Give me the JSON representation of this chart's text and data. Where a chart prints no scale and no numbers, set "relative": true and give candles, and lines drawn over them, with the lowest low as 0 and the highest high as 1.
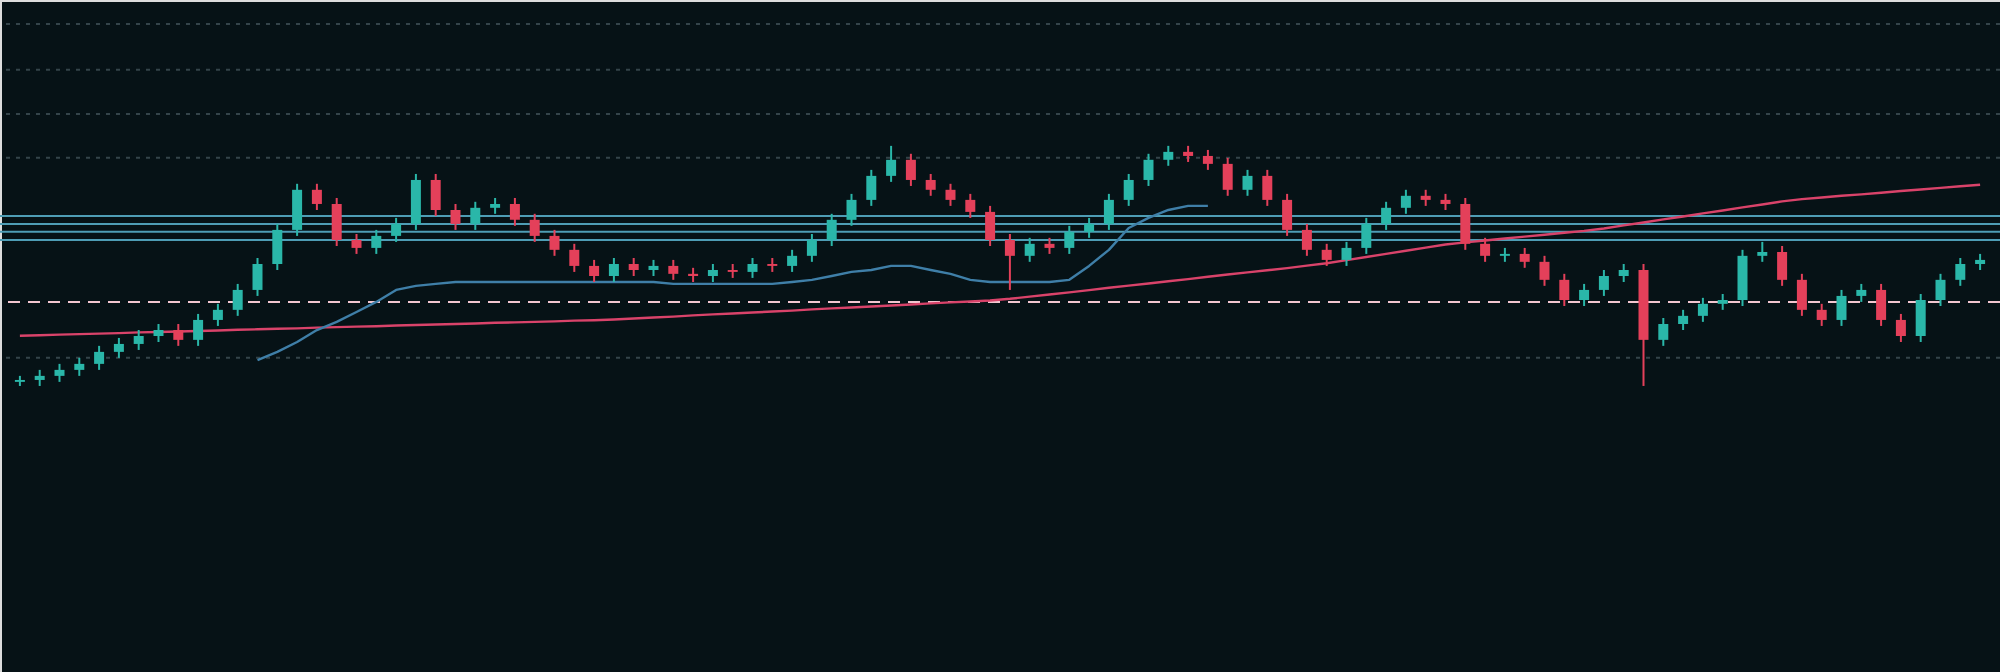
{
  "chart_data": {
    "type": "candlestick",
    "relative": true,
    "categories": [
      null,
      null,
      null,
      null,
      null,
      null,
      null,
      null,
      null,
      null,
      null,
      null,
      null,
      null,
      null,
      null,
      null,
      null,
      null,
      null,
      null,
      null,
      null,
      null,
      null,
      null,
      null,
      null,
      null,
      null,
      null,
      null,
      null,
      null,
      null,
      null,
      null,
      null,
      null,
      null,
      null,
      null,
      null,
      null,
      null,
      null,
      null,
      null,
      null,
      null,
      null,
      null,
      null,
      null,
      null,
      null,
      null,
      null,
      null,
      null,
      null,
      null,
      null,
      null,
      null,
      null,
      null,
      null,
      null,
      null,
      null,
      null,
      null,
      null,
      null,
      null,
      null,
      null,
      null,
      null,
      null,
      null,
      null,
      null,
      null,
      null,
      null,
      null,
      null,
      null,
      null,
      null,
      null,
      null,
      null,
      null,
      null,
      null,
      null,
      null
    ],
    "ohlc": [
      [
        0.017,
        0.042,
        0,
        0.025
      ],
      [
        0.025,
        0.067,
        0,
        0.042
      ],
      [
        0.042,
        0.092,
        0.017,
        0.067
      ],
      [
        0.067,
        0.117,
        0.042,
        0.092
      ],
      [
        0.092,
        0.167,
        0.067,
        0.142
      ],
      [
        0.142,
        0.2,
        0.117,
        0.175
      ],
      [
        0.175,
        0.233,
        0.15,
        0.208
      ],
      [
        0.208,
        0.258,
        0.183,
        0.233
      ],
      [
        0.233,
        0.258,
        0.167,
        0.192
      ],
      [
        0.192,
        0.3,
        0.167,
        0.275
      ],
      [
        0.275,
        0.342,
        0.25,
        0.317
      ],
      [
        0.317,
        0.425,
        0.292,
        0.4
      ],
      [
        0.4,
        0.533,
        0.375,
        0.508
      ],
      [
        0.508,
        0.675,
        0.483,
        0.65
      ],
      [
        0.65,
        0.842,
        0.625,
        0.817
      ],
      [
        0.817,
        0.842,
        0.733,
        0.758
      ],
      [
        0.758,
        0.783,
        0.583,
        0.608
      ],
      [
        0.608,
        0.633,
        0.55,
        0.575
      ],
      [
        0.575,
        0.65,
        0.55,
        0.625
      ],
      [
        0.625,
        0.7,
        0.6,
        0.675
      ],
      [
        0.675,
        0.883,
        0.65,
        0.858
      ],
      [
        0.858,
        0.883,
        0.708,
        0.733
      ],
      [
        0.733,
        0.758,
        0.65,
        0.675
      ],
      [
        0.675,
        0.767,
        0.65,
        0.742
      ],
      [
        0.742,
        0.783,
        0.717,
        0.758
      ],
      [
        0.758,
        0.783,
        0.667,
        0.692
      ],
      [
        0.692,
        0.717,
        0.6,
        0.625
      ],
      [
        0.625,
        0.65,
        0.542,
        0.567
      ],
      [
        0.567,
        0.592,
        0.475,
        0.5
      ],
      [
        0.5,
        0.525,
        0.433,
        0.458
      ],
      [
        0.458,
        0.533,
        0.433,
        0.508
      ],
      [
        0.508,
        0.533,
        0.458,
        0.483
      ],
      [
        0.483,
        0.525,
        0.458,
        0.5
      ],
      [
        0.5,
        0.525,
        0.442,
        0.467
      ],
      [
        0.467,
        0.492,
        0.433,
        0.458
      ],
      [
        0.458,
        0.508,
        0.433,
        0.483
      ],
      [
        0.483,
        0.508,
        0.45,
        0.475
      ],
      [
        0.475,
        0.533,
        0.45,
        0.508
      ],
      [
        0.508,
        0.533,
        0.475,
        0.5
      ],
      [
        0.5,
        0.567,
        0.475,
        0.542
      ],
      [
        0.542,
        0.633,
        0.517,
        0.608
      ],
      [
        0.608,
        0.717,
        0.583,
        0.692
      ],
      [
        0.692,
        0.8,
        0.667,
        0.775
      ],
      [
        0.775,
        0.9,
        0.75,
        0.875
      ],
      [
        0.875,
        1,
        0.85,
        0.942
      ],
      [
        0.942,
        0.967,
        0.833,
        0.858
      ],
      [
        0.858,
        0.883,
        0.792,
        0.817
      ],
      [
        0.817,
        0.842,
        0.75,
        0.775
      ],
      [
        0.775,
        0.8,
        0.7,
        0.725
      ],
      [
        0.725,
        0.75,
        0.583,
        0.608
      ],
      [
        0.608,
        0.633,
        0.4,
        0.542
      ],
      [
        0.542,
        0.617,
        0.517,
        0.592
      ],
      [
        0.592,
        0.617,
        0.55,
        0.575
      ],
      [
        0.575,
        0.667,
        0.55,
        0.642
      ],
      [
        0.642,
        0.7,
        0.617,
        0.675
      ],
      [
        0.675,
        0.8,
        0.65,
        0.775
      ],
      [
        0.775,
        0.883,
        0.75,
        0.858
      ],
      [
        0.858,
        0.967,
        0.833,
        0.942
      ],
      [
        0.942,
        1,
        0.917,
        0.975
      ],
      [
        0.975,
        1,
        0.933,
        0.958
      ],
      [
        0.958,
        0.983,
        0.9,
        0.925
      ],
      [
        0.925,
        0.95,
        0.792,
        0.817
      ],
      [
        0.817,
        0.9,
        0.792,
        0.875
      ],
      [
        0.875,
        0.9,
        0.75,
        0.775
      ],
      [
        0.775,
        0.8,
        0.625,
        0.65
      ],
      [
        0.65,
        0.675,
        0.542,
        0.567
      ],
      [
        0.567,
        0.592,
        0.5,
        0.525
      ],
      [
        0.525,
        0.6,
        0.5,
        0.575
      ],
      [
        0.575,
        0.7,
        0.55,
        0.675
      ],
      [
        0.675,
        0.767,
        0.65,
        0.742
      ],
      [
        0.742,
        0.817,
        0.717,
        0.792
      ],
      [
        0.792,
        0.817,
        0.75,
        0.775
      ],
      [
        0.775,
        0.8,
        0.733,
        0.758
      ],
      [
        0.758,
        0.783,
        0.567,
        0.592
      ],
      [
        0.592,
        0.617,
        0.517,
        0.542
      ],
      [
        0.542,
        0.575,
        0.517,
        0.55
      ],
      [
        0.55,
        0.575,
        0.492,
        0.517
      ],
      [
        0.517,
        0.542,
        0.417,
        0.442
      ],
      [
        0.442,
        0.467,
        0.333,
        0.358
      ],
      [
        0.358,
        0.425,
        0.333,
        0.4
      ],
      [
        0.4,
        0.483,
        0.375,
        0.458
      ],
      [
        0.458,
        0.508,
        0.433,
        0.483
      ],
      [
        0.483,
        0.508,
        0,
        0.192
      ],
      [
        0.192,
        0.283,
        0.167,
        0.258
      ],
      [
        0.258,
        0.317,
        0.233,
        0.292
      ],
      [
        0.292,
        0.367,
        0.267,
        0.342
      ],
      [
        0.342,
        0.383,
        0.317,
        0.358
      ],
      [
        0.358,
        0.567,
        0.333,
        0.542
      ],
      [
        0.542,
        0.6,
        0.517,
        0.558
      ],
      [
        0.558,
        0.583,
        0.417,
        0.442
      ],
      [
        0.442,
        0.467,
        0.292,
        0.317
      ],
      [
        0.317,
        0.342,
        0.25,
        0.275
      ],
      [
        0.275,
        0.4,
        0.25,
        0.375
      ],
      [
        0.375,
        0.425,
        0.35,
        0.4
      ],
      [
        0.4,
        0.425,
        0.25,
        0.275
      ],
      [
        0.275,
        0.3,
        0.183,
        0.208
      ],
      [
        0.208,
        0.383,
        0.183,
        0.358
      ],
      [
        0.358,
        0.467,
        0.333,
        0.442
      ],
      [
        0.442,
        0.533,
        0.417,
        0.508
      ],
      [
        0.508,
        0.55,
        0.483,
        0.525
      ]
    ],
    "colors": [
      "#2ab7a9",
      "#2ab7a9",
      "#2ab7a9",
      "#2ab7a9",
      "#2ab7a9",
      "#2ab7a9",
      "#2ab7a9",
      "#2ab7a9",
      "#e4405a",
      "#2ab7a9",
      "#2ab7a9",
      "#2ab7a9",
      "#2ab7a9",
      "#2ab7a9",
      "#2ab7a9",
      "#e4405a",
      "#e4405a",
      "#e4405a",
      "#2ab7a9",
      "#2ab7a9",
      "#2ab7a9",
      "#e4405a",
      "#e4405a",
      "#2ab7a9",
      "#2ab7a9",
      "#e4405a",
      "#e4405a",
      "#e4405a",
      "#e4405a",
      "#e4405a",
      "#2ab7a9",
      "#e4405a",
      "#2ab7a9",
      "#e4405a",
      "#e4405a",
      "#2ab7a9",
      "#e4405a",
      "#2ab7a9",
      "#e4405a",
      "#2ab7a9",
      "#2ab7a9",
      "#2ab7a9",
      "#2ab7a9",
      "#2ab7a9",
      "#2ab7a9",
      "#e4405a",
      "#e4405a",
      "#e4405a",
      "#e4405a",
      "#e4405a",
      "#e4405a",
      "#2ab7a9",
      "#e4405a",
      "#2ab7a9",
      "#2ab7a9",
      "#2ab7a9",
      "#2ab7a9",
      "#2ab7a9",
      "#2ab7a9",
      "#e4405a",
      "#e4405a",
      "#e4405a",
      "#2ab7a9",
      "#e4405a",
      "#e4405a",
      "#e4405a",
      "#e4405a",
      "#2ab7a9",
      "#2ab7a9",
      "#2ab7a9",
      "#2ab7a9",
      "#e4405a",
      "#e4405a",
      "#e4405a",
      "#e4405a",
      "#2ab7a9",
      "#e4405a",
      "#e4405a",
      "#e4405a",
      "#2ab7a9",
      "#2ab7a9",
      "#2ab7a9",
      "#e4405a",
      "#2ab7a9",
      "#2ab7a9",
      "#2ab7a9",
      "#2ab7a9",
      "#2ab7a9",
      "#2ab7a9",
      "#e4405a",
      "#e4405a",
      "#e4405a",
      "#2ab7a9",
      "#2ab7a9",
      "#e4405a",
      "#e4405a",
      "#2ab7a9",
      "#2ab7a9",
      "#2ab7a9",
      "#2ab7a9"
    ],
    "series": [
      {
        "type": "line",
        "color": "#d9436a",
        "values": [
          0.209,
          0.211,
          0.214,
          0.216,
          0.218,
          0.22,
          0.223,
          0.225,
          0.227,
          0.229,
          0.231,
          0.234,
          0.236,
          0.238,
          0.24,
          0.243,
          0.245,
          0.247,
          0.249,
          0.252,
          0.254,
          0.256,
          0.258,
          0.26,
          0.263,
          0.265,
          0.267,
          0.269,
          0.272,
          0.274,
          0.277,
          0.281,
          0.285,
          0.289,
          0.294,
          0.298,
          0.302,
          0.306,
          0.31,
          0.314,
          0.319,
          0.323,
          0.327,
          0.331,
          0.335,
          0.339,
          0.344,
          0.348,
          0.352,
          0.356,
          0.363,
          0.372,
          0.381,
          0.39,
          0.399,
          0.409,
          0.418,
          0.427,
          0.436,
          0.445,
          0.455,
          0.464,
          0.473,
          0.482,
          0.491,
          0.501,
          0.511,
          0.524,
          0.537,
          0.55,
          0.563,
          0.576,
          0.589,
          0.598,
          0.606,
          0.614,
          0.622,
          0.63,
          0.638,
          0.646,
          0.656,
          0.669,
          0.681,
          0.694,
          0.706,
          0.719,
          0.731,
          0.744,
          0.756,
          0.769,
          0.778,
          0.785,
          0.792,
          0.798,
          0.805,
          0.812,
          0.818,
          0.825,
          0.832,
          0.838
        ]
      },
      {
        "type": "line",
        "color": "#3f7fa8",
        "values": [
          null,
          null,
          null,
          null,
          null,
          null,
          null,
          null,
          null,
          null,
          null,
          null,
          0.108,
          0.142,
          0.183,
          0.233,
          0.267,
          0.308,
          0.35,
          0.4,
          0.417,
          0.425,
          0.433,
          0.433,
          0.433,
          0.433,
          0.433,
          0.433,
          0.433,
          0.433,
          0.433,
          0.433,
          0.433,
          0.425,
          0.425,
          0.425,
          0.425,
          0.425,
          0.425,
          0.433,
          0.442,
          0.458,
          0.475,
          0.483,
          0.5,
          0.5,
          0.483,
          0.467,
          0.442,
          0.433,
          0.433,
          0.433,
          0.433,
          0.442,
          0.5,
          0.567,
          0.658,
          0.7,
          0.733,
          0.75,
          0.75,
          null,
          null,
          null,
          null,
          null,
          null,
          null,
          null,
          null,
          null,
          null,
          null,
          null,
          null,
          null,
          null,
          null,
          null,
          null,
          null,
          null,
          null,
          null,
          null,
          null,
          null,
          null,
          null,
          null,
          null,
          null,
          null,
          null,
          null,
          null,
          null,
          null,
          null,
          null
        ]
      }
    ],
    "ref_lines": [
      {
        "axis": "y",
        "value": 0.35,
        "color": "#f2c6d0",
        "line_style": "dashed"
      },
      {
        "axis": "y",
        "value": 0.708,
        "color": "#4e9db5",
        "line_style": "solid"
      },
      {
        "axis": "y",
        "value": 0.675,
        "color": "#4e9db5",
        "line_style": "solid"
      },
      {
        "axis": "y",
        "value": 0.642,
        "color": "#4e9db5",
        "line_style": "solid"
      },
      {
        "axis": "y",
        "value": 0.608,
        "color": "#4e9db5",
        "line_style": "solid"
      },
      {
        "axis": "y",
        "value": 1.508,
        "color": "#34444a",
        "line_style": "dotted"
      },
      {
        "axis": "y",
        "value": 1.317,
        "color": "#34444a",
        "line_style": "dotted"
      },
      {
        "axis": "y",
        "value": 1.133,
        "color": "#34444a",
        "line_style": "dotted"
      },
      {
        "axis": "y",
        "value": 0.95,
        "color": "#34444a",
        "line_style": "dotted"
      },
      {
        "axis": "y",
        "value": 0.117,
        "color": "#34444a",
        "line_style": "dotted"
      }
    ]
  }
}
